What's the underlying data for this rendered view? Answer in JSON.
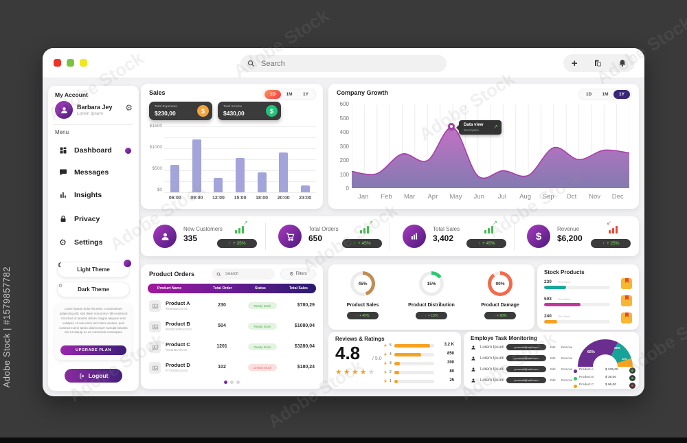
{
  "watermark": {
    "label": "Adobe Stock",
    "id_label": "Adobe Stock | #1579857782"
  },
  "header": {
    "search_placeholder": "Search"
  },
  "sidebar": {
    "account_label": "My Account",
    "user_name": "Barbara Jey",
    "user_subtitle": "Lorem Ipsum",
    "menu_label": "Menu",
    "items": [
      {
        "label": "Dashboard"
      },
      {
        "label": "Messages"
      },
      {
        "label": "Insights"
      },
      {
        "label": "Privacy"
      },
      {
        "label": "Settings"
      }
    ],
    "light_theme_label": "Light Theme",
    "dark_theme_label": "Dark Theme",
    "promo_text": "Lorem ipsum dolor sit amet, consectetuer adipiscing elit, sed diam nonummy nibh euismod tincidunt ut laoreet dolore magna aliquam erat volutpat. Ut wisi enim ad minim veniam, quis nostrud exerci tation ullamcorper suscipit lobortis nisl ut aliquip ex ea commodo consequat.",
    "upgrade_label": "UPGRADE PLAN",
    "logout_label": "Logout"
  },
  "sales": {
    "title": "Sales",
    "ranges": [
      "1D",
      "1M",
      "1Y"
    ],
    "active_range": "1D",
    "expenses_label": "Total Expenses",
    "expenses_value": "$230,00",
    "income_label": "Total Income",
    "income_value": "$430,00",
    "chart_data": {
      "type": "bar",
      "categories": [
        "06:00",
        "09:00",
        "12:00",
        "15:00",
        "18:00",
        "20:00",
        "23:00"
      ],
      "values": [
        620,
        1200,
        330,
        780,
        450,
        900,
        150
      ],
      "ylabels": [
        "$1500",
        "$1000",
        "$500",
        "$0"
      ],
      "ylim": [
        0,
        1500
      ],
      "bar_color": "#a3a4d9"
    }
  },
  "growth": {
    "title": "Company Growth",
    "ranges": [
      "1D",
      "1M",
      "1Y"
    ],
    "active_range": "1Y",
    "tooltip_title": "Data view",
    "tooltip_subtitle": "Description",
    "chart_data": {
      "type": "area",
      "x": [
        "Jan",
        "Feb",
        "Mar",
        "Apr",
        "May",
        "Jun",
        "Jul",
        "Aug",
        "Sep",
        "Oct",
        "Nov",
        "Dec"
      ],
      "values": [
        120,
        105,
        245,
        198,
        435,
        88,
        125,
        92,
        290,
        205,
        272,
        252
      ],
      "ylabels": [
        "600",
        "500",
        "400",
        "300",
        "200",
        "100",
        "0"
      ],
      "ylim": [
        0,
        600
      ],
      "marker_index": 4,
      "line_color": "#a83fa8",
      "fill_top": "#c271c4",
      "fill_bottom": "#837ab1"
    }
  },
  "stats": {
    "items": [
      {
        "label": "New Customers",
        "value": "335",
        "change": "+ 35%",
        "trend": "up"
      },
      {
        "label": "Total Orders",
        "value": "650",
        "change": "+ 45%",
        "trend": "up"
      },
      {
        "label": "Total Sales",
        "value": "3,402",
        "change": "+ 45%",
        "trend": "up"
      },
      {
        "label": "Revenue",
        "value": "$6,200",
        "change": "+ 25%",
        "trend": "down"
      }
    ]
  },
  "orders": {
    "title": "Product Orders",
    "search_placeholder": "Search",
    "filters_label": "Filters",
    "columns": [
      "Product Name",
      "Total Order",
      "Status",
      "Total Sales"
    ],
    "rows": [
      {
        "name": "Product A",
        "code": "#8420DDA24-01",
        "order": "230",
        "status": "Ready Stock",
        "sales": "$780,29"
      },
      {
        "name": "Product B",
        "code": "#84201100DA24-01",
        "order": "504",
        "status": "Ready Stock",
        "sales": "$1080,04"
      },
      {
        "name": "Product C",
        "code": "#53110DA24-02",
        "order": "1201",
        "status": "Ready Stock",
        "sales": "$3280,04"
      },
      {
        "name": "Product D",
        "code": "#7720DDA24-03",
        "order": "102",
        "status": "Limited Stock",
        "sales": "$180,24"
      }
    ]
  },
  "donuts": {
    "chart_data": {
      "type": "pie_set"
    },
    "items": [
      {
        "pct": 45,
        "pct_label": "45%",
        "label": "Product Sales",
        "change": "+ 45%",
        "color": "#c08d52"
      },
      {
        "pct": 15,
        "pct_label": "15%",
        "label": "Product Distribution",
        "change": "+ 15%",
        "color": "#2dc96f"
      },
      {
        "pct": 90,
        "pct_label": "90%",
        "label": "Product Damage",
        "change": "+ 90%",
        "color": "#f4694b"
      }
    ]
  },
  "stock": {
    "title": "Stock Products",
    "items": [
      {
        "value": "230",
        "note": "This Week",
        "pct": 33,
        "color": "#16a89b"
      },
      {
        "value": "503",
        "note": "This Week",
        "pct": 55,
        "color": "#c2379b"
      },
      {
        "value": "240",
        "note": "This Week",
        "pct": 20,
        "color": "#f6a21e"
      }
    ]
  },
  "reviews": {
    "title": "Reviews & Ratings",
    "score": "4.8",
    "out_of": "/ 5.0",
    "stars_filled": 4,
    "rows": [
      {
        "star": "5",
        "value": "3.2 K",
        "pct": 90,
        "color": "#f6a21e"
      },
      {
        "star": "4",
        "value": "850",
        "pct": 68,
        "color": "#f6a21e"
      },
      {
        "star": "3",
        "value": "300",
        "pct": 14,
        "color": "#f6a21e"
      },
      {
        "star": "2",
        "value": "80",
        "pct": 12,
        "color": "#f6a21e"
      },
      {
        "star": "1",
        "value": "25",
        "pct": 8,
        "color": "#f6a21e"
      }
    ]
  },
  "tasks": {
    "title": "Employe Task Monitoring",
    "rows": [
      {
        "name": "Lorem Ipsum",
        "email": "yourmail@mail.com",
        "edit": "Edit",
        "remove": "Remove"
      },
      {
        "name": "Lorem Ipsum",
        "email": "yourmail@mail.com",
        "edit": "Edit",
        "remove": "Remove"
      },
      {
        "name": "Lorem Ipsum",
        "email": "yourmail@mail.com",
        "edit": "Edit",
        "remove": "Remove"
      },
      {
        "name": "Lorem Ipsum",
        "email": "yourmail@mail.com",
        "edit": "Edit",
        "remove": "Remove"
      }
    ],
    "gauge": {
      "type": "gauge",
      "segments": [
        {
          "label": "65%",
          "pct": 65,
          "color": "#6b2d90"
        },
        {
          "label": "25%",
          "pct": 25,
          "color": "#17a398"
        },
        {
          "label": "10%",
          "pct": 10,
          "color": "#f6a21e"
        }
      ]
    },
    "legend": [
      {
        "name": "Product A",
        "value": "$ 235,00",
        "color": "#6b2d90",
        "dot": "#3fbf4e"
      },
      {
        "name": "Product B",
        "value": "$ 36,00",
        "color": "#2dc96f",
        "dot": "#3fbf4e"
      },
      {
        "name": "Product C",
        "value": "$ 96,00",
        "color": "#f6a21e",
        "dot": "#f04438"
      }
    ]
  }
}
